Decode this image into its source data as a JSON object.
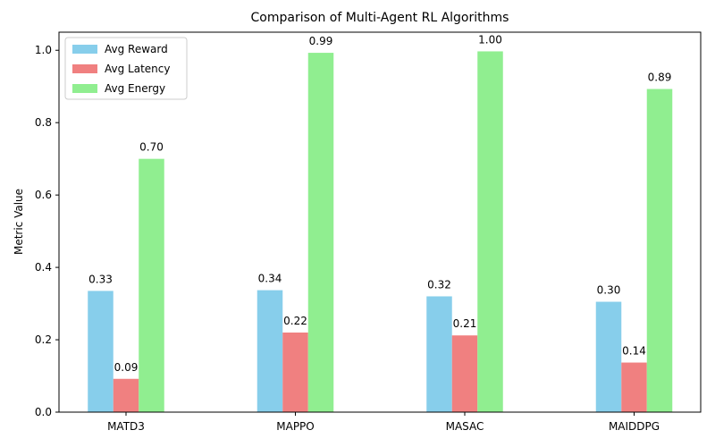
{
  "chart_data": {
    "type": "bar",
    "title": "Comparison of Multi-Agent RL Algorithms",
    "xlabel": "",
    "ylabel": "Metric Value",
    "categories": [
      "MATD3",
      "MAPPO",
      "MASAC",
      "MAIDDPG"
    ],
    "series": [
      {
        "name": "Avg Reward",
        "color": "#87ceeb",
        "values": [
          0.335,
          0.337,
          0.32,
          0.305
        ],
        "labels": [
          "0.33",
          "0.34",
          "0.32",
          "0.30"
        ]
      },
      {
        "name": "Avg Latency",
        "color": "#f08080",
        "values": [
          0.092,
          0.22,
          0.212,
          0.137
        ],
        "labels": [
          "0.09",
          "0.22",
          "0.21",
          "0.14"
        ]
      },
      {
        "name": "Avg Energy",
        "color": "#90ee90",
        "values": [
          0.7,
          0.993,
          0.997,
          0.893
        ],
        "labels": [
          "0.70",
          "0.99",
          "1.00",
          "0.89"
        ]
      }
    ],
    "ylim": [
      0,
      1.05
    ],
    "yticks": [
      0.0,
      0.2,
      0.4,
      0.6,
      0.8,
      1.0
    ],
    "ytick_labels": [
      "0.0",
      "0.2",
      "0.4",
      "0.6",
      "0.8",
      "1.0"
    ],
    "grid": false,
    "legend_position": "top-left"
  }
}
